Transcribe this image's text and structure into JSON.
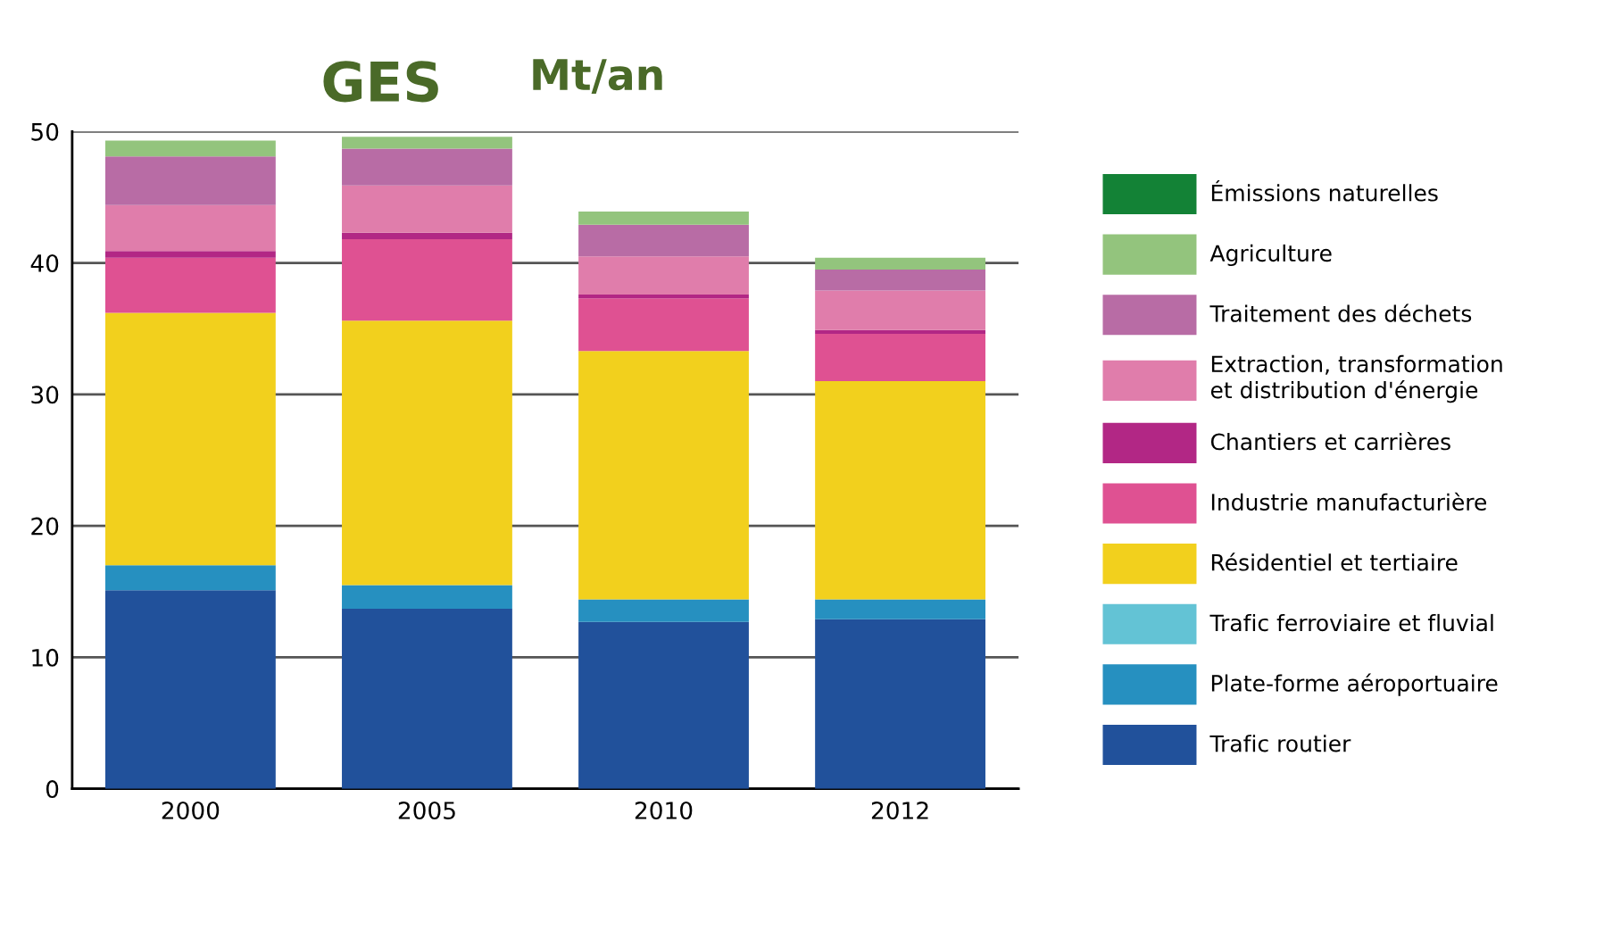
{
  "chart_data": {
    "type": "bar",
    "title": "GES",
    "subtitle": "Mt/an",
    "stacked": true,
    "categories": [
      "2000",
      "2005",
      "2010",
      "2012"
    ],
    "series": [
      {
        "name": "Trafic routier",
        "color": "#21519b",
        "values": [
          15.1,
          13.7,
          12.7,
          12.9
        ]
      },
      {
        "name": "Plate-forme aéroportuaire",
        "color": "#2690c0",
        "values": [
          1.9,
          1.8,
          1.7,
          1.5
        ]
      },
      {
        "name": "Trafic ferroviaire et fluvial",
        "color": "#63c3d5",
        "values": [
          0,
          0,
          0,
          0
        ]
      },
      {
        "name": "Résidentiel et tertiaire",
        "color": "#f2d01d",
        "values": [
          19.2,
          20.1,
          18.9,
          16.6
        ]
      },
      {
        "name": "Industrie manufacturière",
        "color": "#df5192",
        "values": [
          4.2,
          6.2,
          4.0,
          3.6
        ]
      },
      {
        "name": "Chantiers et carrières",
        "color": "#b22785",
        "values": [
          0.5,
          0.5,
          0.3,
          0.3
        ]
      },
      {
        "name": "Extraction, transformation\net distribution d'énergie",
        "color": "#e07dab",
        "values": [
          3.5,
          3.6,
          2.9,
          3.0
        ]
      },
      {
        "name": "Traitement des déchets",
        "color": "#b86ca5",
        "values": [
          3.7,
          2.8,
          2.4,
          1.6
        ]
      },
      {
        "name": "Agriculture",
        "color": "#93c47d",
        "values": [
          1.2,
          0.9,
          1.0,
          0.9
        ]
      },
      {
        "name": "Émissions naturelles",
        "color": "#138236",
        "values": [
          0,
          0,
          0,
          0
        ]
      }
    ],
    "ylim": [
      0,
      50
    ],
    "yticks": [
      0,
      10,
      20,
      30,
      40,
      50
    ],
    "grid": "y",
    "legend": "right"
  }
}
